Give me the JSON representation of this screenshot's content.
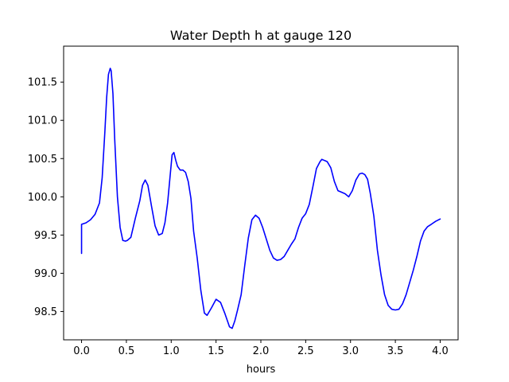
{
  "chart_data": {
    "type": "line",
    "title": "Water Depth h at gauge 120",
    "xlabel": "hours",
    "ylabel": "",
    "xlim": [
      -0.2,
      4.2
    ],
    "ylim": [
      98.13,
      101.97
    ],
    "xticks": [
      0.0,
      0.5,
      1.0,
      1.5,
      2.0,
      2.5,
      3.0,
      3.5,
      4.0
    ],
    "xtick_labels": [
      "0.0",
      "0.5",
      "1.0",
      "1.5",
      "2.0",
      "2.5",
      "3.0",
      "3.5",
      "4.0"
    ],
    "yticks": [
      98.5,
      99.0,
      99.5,
      100.0,
      100.5,
      101.0,
      101.5
    ],
    "ytick_labels": [
      "98.5",
      "99.0",
      "99.5",
      "100.0",
      "100.5",
      "101.0",
      "101.5"
    ],
    "grid": false,
    "series": [
      {
        "color": "#0000ff",
        "x": [
          0.0,
          0.0,
          0.05,
          0.1,
          0.15,
          0.2,
          0.23,
          0.26,
          0.28,
          0.3,
          0.32,
          0.33,
          0.35,
          0.37,
          0.4,
          0.43,
          0.46,
          0.49,
          0.51,
          0.55,
          0.6,
          0.65,
          0.68,
          0.71,
          0.74,
          0.78,
          0.82,
          0.86,
          0.9,
          0.93,
          0.96,
          0.99,
          1.01,
          1.03,
          1.05,
          1.07,
          1.1,
          1.13,
          1.16,
          1.19,
          1.22,
          1.25,
          1.29,
          1.33,
          1.37,
          1.4,
          1.45,
          1.5,
          1.55,
          1.6,
          1.65,
          1.68,
          1.71,
          1.74,
          1.78,
          1.82,
          1.86,
          1.9,
          1.94,
          1.98,
          2.02,
          2.06,
          2.1,
          2.14,
          2.18,
          2.22,
          2.26,
          2.3,
          2.34,
          2.38,
          2.42,
          2.46,
          2.5,
          2.54,
          2.58,
          2.62,
          2.66,
          2.68,
          2.7,
          2.72,
          2.74,
          2.78,
          2.82,
          2.86,
          2.9,
          2.94,
          2.98,
          3.02,
          3.06,
          3.1,
          3.13,
          3.16,
          3.19,
          3.22,
          3.26,
          3.3,
          3.34,
          3.38,
          3.42,
          3.46,
          3.5,
          3.54,
          3.58,
          3.62,
          3.66,
          3.7,
          3.74,
          3.78,
          3.82,
          3.86,
          3.9,
          3.95,
          4.0
        ],
        "y": [
          99.26,
          99.64,
          99.66,
          99.7,
          99.77,
          99.92,
          100.25,
          100.85,
          101.3,
          101.6,
          101.68,
          101.65,
          101.35,
          100.75,
          100.0,
          99.6,
          99.43,
          99.42,
          99.43,
          99.47,
          99.72,
          99.95,
          100.15,
          100.22,
          100.15,
          99.88,
          99.62,
          99.5,
          99.52,
          99.66,
          99.92,
          100.3,
          100.55,
          100.58,
          100.48,
          100.4,
          100.35,
          100.35,
          100.32,
          100.2,
          99.98,
          99.55,
          99.2,
          98.78,
          98.48,
          98.45,
          98.55,
          98.66,
          98.62,
          98.47,
          98.3,
          98.28,
          98.38,
          98.52,
          98.72,
          99.1,
          99.46,
          99.7,
          99.76,
          99.72,
          99.6,
          99.45,
          99.3,
          99.2,
          99.17,
          99.18,
          99.22,
          99.3,
          99.38,
          99.45,
          99.6,
          99.72,
          99.78,
          99.9,
          100.13,
          100.37,
          100.46,
          100.49,
          100.48,
          100.47,
          100.46,
          100.38,
          100.2,
          100.08,
          100.06,
          100.04,
          100.0,
          100.08,
          100.22,
          100.3,
          100.31,
          100.29,
          100.23,
          100.05,
          99.75,
          99.3,
          98.98,
          98.72,
          98.58,
          98.53,
          98.52,
          98.53,
          98.6,
          98.72,
          98.88,
          99.04,
          99.22,
          99.42,
          99.55,
          99.61,
          99.64,
          99.68,
          99.71
        ]
      }
    ]
  }
}
